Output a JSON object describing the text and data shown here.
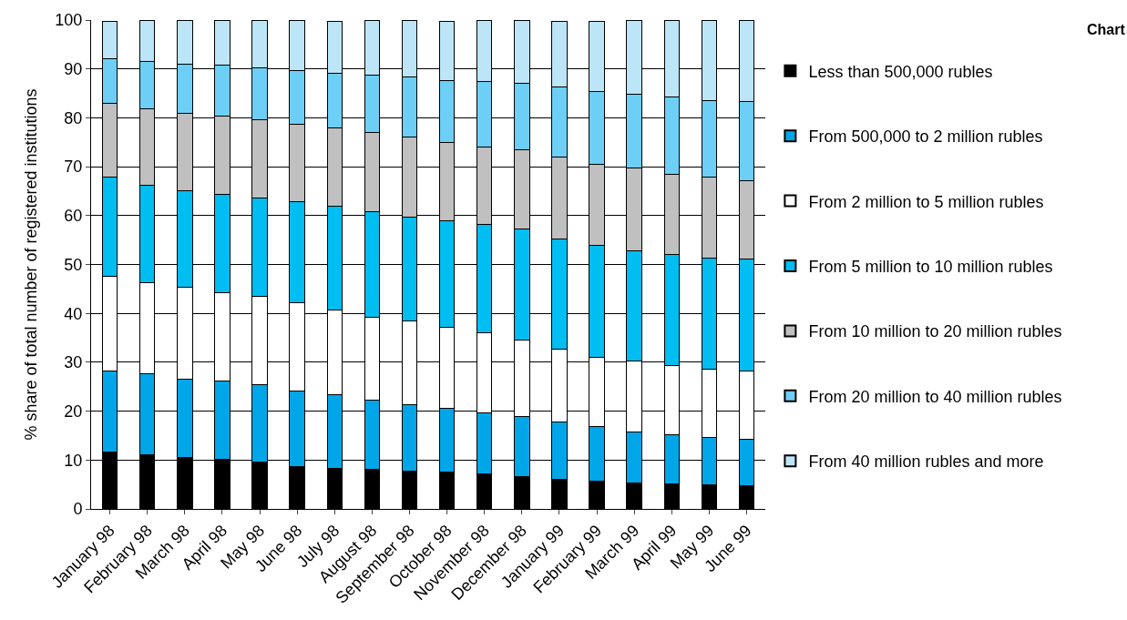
{
  "chart_data": {
    "type": "bar",
    "stacked": true,
    "title": "Chart",
    "ylabel": "% share of total number of registered institutions",
    "categories": [
      "January 98",
      "February 98",
      "March 98",
      "April 98",
      "May 98",
      "June 98",
      "July 98",
      "August 98",
      "September 98",
      "October 98",
      "November 98",
      "December 98",
      "January 99",
      "February 99",
      "March 99",
      "April 99",
      "May 99",
      "June 99"
    ],
    "series": [
      {
        "name": "Less than 500,000 rubles",
        "color": "#000000",
        "values": [
          11.6,
          11.0,
          10.6,
          10.1,
          9.6,
          8.6,
          8.3,
          8.1,
          7.8,
          7.5,
          7.2,
          6.6,
          6.1,
          5.7,
          5.4,
          5.1,
          4.9,
          4.7
        ]
      },
      {
        "name": "From 500,000 to 2 million rubles",
        "color": "#00a6e8",
        "values": [
          16.6,
          16.6,
          16.0,
          16.1,
          15.8,
          15.6,
          15.0,
          14.1,
          13.5,
          13.0,
          12.5,
          12.3,
          11.7,
          11.1,
          10.3,
          10.1,
          9.7,
          9.6
        ]
      },
      {
        "name": "From 2 million to 5 million rubles",
        "color": "#ffffff",
        "values": [
          19.4,
          18.7,
          18.7,
          18.1,
          18.0,
          17.9,
          17.4,
          17.0,
          17.1,
          16.7,
          16.3,
          15.6,
          14.9,
          14.2,
          14.5,
          14.1,
          13.9,
          14.0
        ]
      },
      {
        "name": "From 5 million to 10 million rubles",
        "color": "#00bdf2",
        "values": [
          20.2,
          19.9,
          19.8,
          20.1,
          20.2,
          20.8,
          21.2,
          21.6,
          21.3,
          21.8,
          22.2,
          22.8,
          22.6,
          22.9,
          22.6,
          22.7,
          22.8,
          22.8
        ]
      },
      {
        "name": "From 10 million to 20 million rubles",
        "color": "#c0c0c0",
        "values": [
          15.1,
          15.7,
          15.9,
          16.0,
          16.1,
          15.8,
          16.0,
          16.2,
          16.3,
          15.9,
          15.9,
          16.2,
          16.6,
          16.5,
          16.9,
          16.4,
          16.5,
          16.0
        ]
      },
      {
        "name": "From 20 million to 40 million rubles",
        "color": "#6dcff6",
        "values": [
          9.2,
          9.7,
          10.0,
          10.3,
          10.5,
          11.0,
          11.3,
          11.8,
          12.3,
          12.7,
          13.4,
          13.5,
          14.5,
          15.0,
          15.2,
          15.9,
          15.8,
          16.2
        ]
      },
      {
        "name": "From 40 million rubles and more",
        "color": "#bde5f8",
        "values": [
          7.7,
          8.3,
          9.0,
          9.3,
          9.7,
          10.2,
          10.6,
          11.1,
          11.6,
          12.1,
          12.4,
          12.9,
          13.4,
          14.4,
          15.1,
          15.7,
          16.4,
          16.7
        ]
      }
    ],
    "ylim": [
      0,
      100
    ],
    "yticks": [
      0,
      10,
      20,
      30,
      40,
      50,
      60,
      70,
      80,
      90,
      100
    ],
    "grid": "y",
    "legend": "right"
  }
}
